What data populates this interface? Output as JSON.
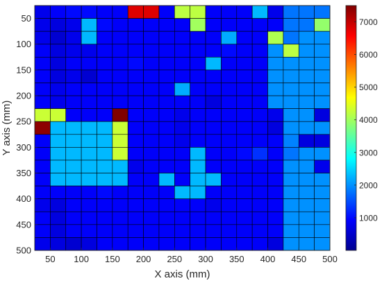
{
  "chart_data": {
    "type": "heatmap",
    "xlabel": "X axis (mm)",
    "ylabel": "Y axis (mm)",
    "xlim": [
      25,
      500
    ],
    "ylim": [
      500,
      25
    ],
    "y_direction": "down",
    "x_ticks": [
      50,
      100,
      150,
      200,
      250,
      300,
      350,
      400,
      450,
      500
    ],
    "y_ticks": [
      50,
      100,
      150,
      200,
      250,
      300,
      350,
      400,
      450,
      500
    ],
    "x_tick_labels": [
      "50",
      "100",
      "150",
      "200",
      "250",
      "300",
      "350",
      "400",
      "450",
      "500"
    ],
    "y_tick_labels": [
      "50",
      "100",
      "150",
      "200",
      "250",
      "300",
      "350",
      "400",
      "450",
      "500"
    ],
    "x_centers": [
      37.5,
      62.5,
      87.5,
      112.5,
      137.5,
      162.5,
      187.5,
      212.5,
      237.5,
      262.5,
      287.5,
      312.5,
      337.5,
      362.5,
      387.5,
      412.5,
      437.5,
      462.5,
      487.5
    ],
    "y_centers": [
      37.5,
      62.5,
      87.5,
      112.5,
      137.5,
      162.5,
      187.5,
      212.5,
      237.5,
      262.5,
      287.5,
      312.5,
      337.5,
      362.5,
      387.5,
      412.5,
      437.5,
      462.5,
      487.5
    ],
    "cell_size": 25,
    "values": [
      [
        800,
        900,
        1000,
        1000,
        900,
        900,
        6800,
        6800,
        900,
        4200,
        4200,
        900,
        900,
        900,
        2300,
        800,
        1800,
        1800,
        1800
      ],
      [
        800,
        700,
        800,
        2300,
        1000,
        900,
        900,
        900,
        900,
        900,
        4000,
        900,
        900,
        900,
        900,
        900,
        1800,
        1800,
        3900
      ],
      [
        800,
        600,
        800,
        2300,
        900,
        900,
        900,
        900,
        900,
        900,
        900,
        900,
        2200,
        900,
        900,
        4100,
        1800,
        2000,
        2000
      ],
      [
        900,
        700,
        800,
        800,
        900,
        900,
        900,
        900,
        900,
        900,
        900,
        900,
        1000,
        900,
        900,
        2000,
        4200,
        2000,
        2000
      ],
      [
        900,
        700,
        900,
        900,
        900,
        900,
        1000,
        900,
        900,
        900,
        900,
        2300,
        900,
        900,
        900,
        2000,
        2000,
        2000,
        2000
      ],
      [
        900,
        700,
        800,
        600,
        900,
        900,
        900,
        900,
        900,
        900,
        900,
        900,
        900,
        900,
        900,
        2000,
        2000,
        2000,
        2000
      ],
      [
        900,
        800,
        900,
        900,
        900,
        900,
        900,
        900,
        900,
        2200,
        900,
        900,
        900,
        900,
        900,
        2000,
        2000,
        2000,
        2000
      ],
      [
        900,
        800,
        900,
        900,
        900,
        900,
        900,
        900,
        900,
        900,
        900,
        700,
        900,
        900,
        900,
        2000,
        2000,
        2000,
        2000
      ],
      [
        4300,
        4300,
        900,
        900,
        900,
        7500,
        900,
        900,
        900,
        800,
        900,
        900,
        900,
        900,
        900,
        800,
        2000,
        2000,
        700
      ],
      [
        7400,
        2300,
        2300,
        2300,
        2300,
        4300,
        900,
        900,
        900,
        800,
        900,
        900,
        900,
        900,
        900,
        700,
        2000,
        2000,
        2000
      ],
      [
        900,
        2300,
        2300,
        2300,
        2300,
        4300,
        900,
        900,
        900,
        800,
        900,
        900,
        900,
        900,
        900,
        900,
        1900,
        700,
        700
      ],
      [
        900,
        2300,
        2300,
        2300,
        2300,
        4300,
        900,
        900,
        900,
        900,
        2300,
        900,
        900,
        1000,
        1300,
        900,
        1800,
        2000,
        2000
      ],
      [
        900,
        2300,
        2300,
        2300,
        2300,
        2300,
        800,
        900,
        900,
        900,
        2300,
        900,
        900,
        900,
        900,
        900,
        2000,
        2000,
        800
      ],
      [
        900,
        2300,
        2300,
        2300,
        2300,
        2300,
        900,
        900,
        2300,
        900,
        2300,
        2300,
        900,
        900,
        900,
        900,
        2000,
        2000,
        2000
      ],
      [
        900,
        900,
        900,
        900,
        1000,
        900,
        900,
        900,
        900,
        2300,
        2300,
        900,
        900,
        900,
        900,
        900,
        2000,
        2000,
        2000
      ],
      [
        800,
        700,
        900,
        900,
        900,
        900,
        900,
        900,
        900,
        900,
        900,
        800,
        900,
        900,
        900,
        900,
        2000,
        2000,
        2000
      ],
      [
        900,
        700,
        900,
        900,
        900,
        900,
        900,
        900,
        900,
        900,
        900,
        900,
        900,
        900,
        900,
        900,
        2000,
        2000,
        2000
      ],
      [
        900,
        700,
        900,
        900,
        900,
        900,
        900,
        900,
        900,
        900,
        900,
        900,
        900,
        900,
        900,
        900,
        2000,
        2000,
        2000
      ],
      [
        800,
        700,
        600,
        700,
        900,
        900,
        900,
        900,
        900,
        900,
        900,
        900,
        900,
        900,
        900,
        700,
        2000,
        2000,
        2000
      ]
    ],
    "colorbar": {
      "colormap": "jet",
      "range": [
        0,
        7500
      ],
      "ticks": [
        1000,
        2000,
        3000,
        4000,
        5000,
        6000,
        7000
      ],
      "tick_labels": [
        "1000",
        "2000",
        "3000",
        "4000",
        "5000",
        "6000",
        "7000"
      ]
    },
    "grid": true,
    "legend": "none"
  }
}
